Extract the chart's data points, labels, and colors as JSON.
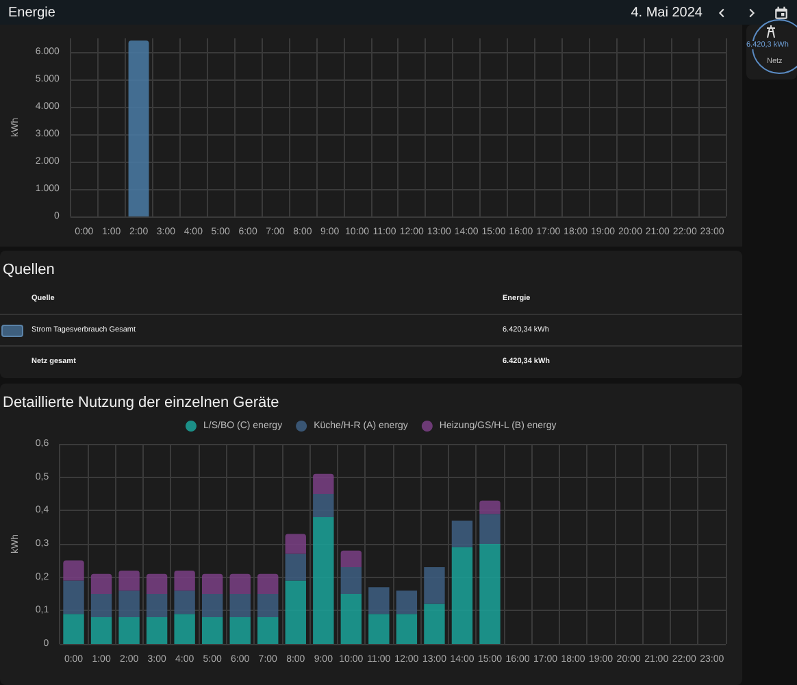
{
  "chart_data": [
    {
      "type": "bar",
      "title": "Energie",
      "subtitle": "4. Mai 2024",
      "ylabel": "kWh",
      "annotations": [
        "6.420,3 kWh",
        "Netz"
      ],
      "categories": [
        "0:00",
        "1:00",
        "2:00",
        "3:00",
        "4:00",
        "5:00",
        "6:00",
        "7:00",
        "8:00",
        "9:00",
        "10:00",
        "11:00",
        "12:00",
        "13:00",
        "14:00",
        "15:00",
        "16:00",
        "17:00",
        "18:00",
        "19:00",
        "20:00",
        "21:00",
        "22:00",
        "23:00"
      ],
      "series": [
        {
          "color": "#4a7ba6",
          "values": [
            null,
            null,
            6420,
            null,
            null,
            null,
            null,
            null,
            null,
            null,
            null,
            null,
            null,
            null,
            null,
            null,
            null,
            null,
            null,
            null,
            null,
            null,
            null,
            null
          ]
        }
      ],
      "ylim": [
        0,
        6500
      ],
      "yticks": [
        0,
        {
          "value": 1000,
          "label": "1.000"
        },
        {
          "value": 2000,
          "label": "2.000"
        },
        {
          "value": 3000,
          "label": "3.000"
        },
        {
          "value": 4000,
          "label": "4.000"
        },
        {
          "value": 5000,
          "label": "5.000"
        },
        {
          "value": 6000,
          "label": "6.000"
        }
      ],
      "grid": true,
      "legend": false
    },
    {
      "type": "other",
      "title": "Quellen",
      "annotations": [
        "Quelle",
        "Energie",
        "Strom Tagesverbrauch Gesamt",
        "6.420,34 kWh",
        "Netz gesamt",
        "6.420,34 kWh"
      ]
    },
    {
      "type": "bar",
      "title": "Detaillierte Nutzung der einzelnen Geräte",
      "ylabel": "kWh",
      "stacked": true,
      "legend": "top",
      "categories": [
        "0:00",
        "1:00",
        "2:00",
        "3:00",
        "4:00",
        "5:00",
        "6:00",
        "7:00",
        "8:00",
        "9:00",
        "10:00",
        "11:00",
        "12:00",
        "13:00",
        "14:00",
        "15:00",
        "16:00",
        "17:00",
        "18:00",
        "19:00",
        "20:00",
        "21:00",
        "22:00",
        "23:00"
      ],
      "series": [
        {
          "name": "L/S/BO (C) energy",
          "color": "#1ba39a",
          "values": [
            0.09,
            0.08,
            0.08,
            0.08,
            0.09,
            0.08,
            0.08,
            0.08,
            0.19,
            0.38,
            0.15,
            0.09,
            0.09,
            0.12,
            0.29,
            0.3,
            null,
            null,
            null,
            null,
            null,
            null,
            null,
            null
          ]
        },
        {
          "name": "Küche/H-R (A) energy",
          "color": "#3e5f82",
          "values": [
            0.1,
            0.07,
            0.08,
            0.07,
            0.07,
            0.07,
            0.07,
            0.07,
            0.08,
            0.07,
            0.08,
            0.08,
            0.07,
            0.11,
            0.08,
            0.09,
            null,
            null,
            null,
            null,
            null,
            null,
            null,
            null
          ]
        },
        {
          "name": "Heizung/GS/H-L (B) energy",
          "color": "#7a4085",
          "values": [
            0.06,
            0.06,
            0.06,
            0.06,
            0.06,
            0.06,
            0.06,
            0.06,
            0.06,
            0.06,
            0.05,
            0,
            0,
            0,
            0,
            0.04,
            null,
            null,
            null,
            null,
            null,
            null,
            null,
            null
          ]
        }
      ],
      "ylim": [
        0,
        0.6
      ],
      "yticks": [
        0,
        {
          "value": 0.1,
          "label": "0,1"
        },
        {
          "value": 0.2,
          "label": "0,2"
        },
        {
          "value": 0.3,
          "label": "0,3"
        },
        {
          "value": 0.4,
          "label": "0,4"
        },
        {
          "value": 0.5,
          "label": "0,5"
        },
        {
          "value": 0.6,
          "label": "0,6"
        }
      ],
      "grid": true
    }
  ]
}
